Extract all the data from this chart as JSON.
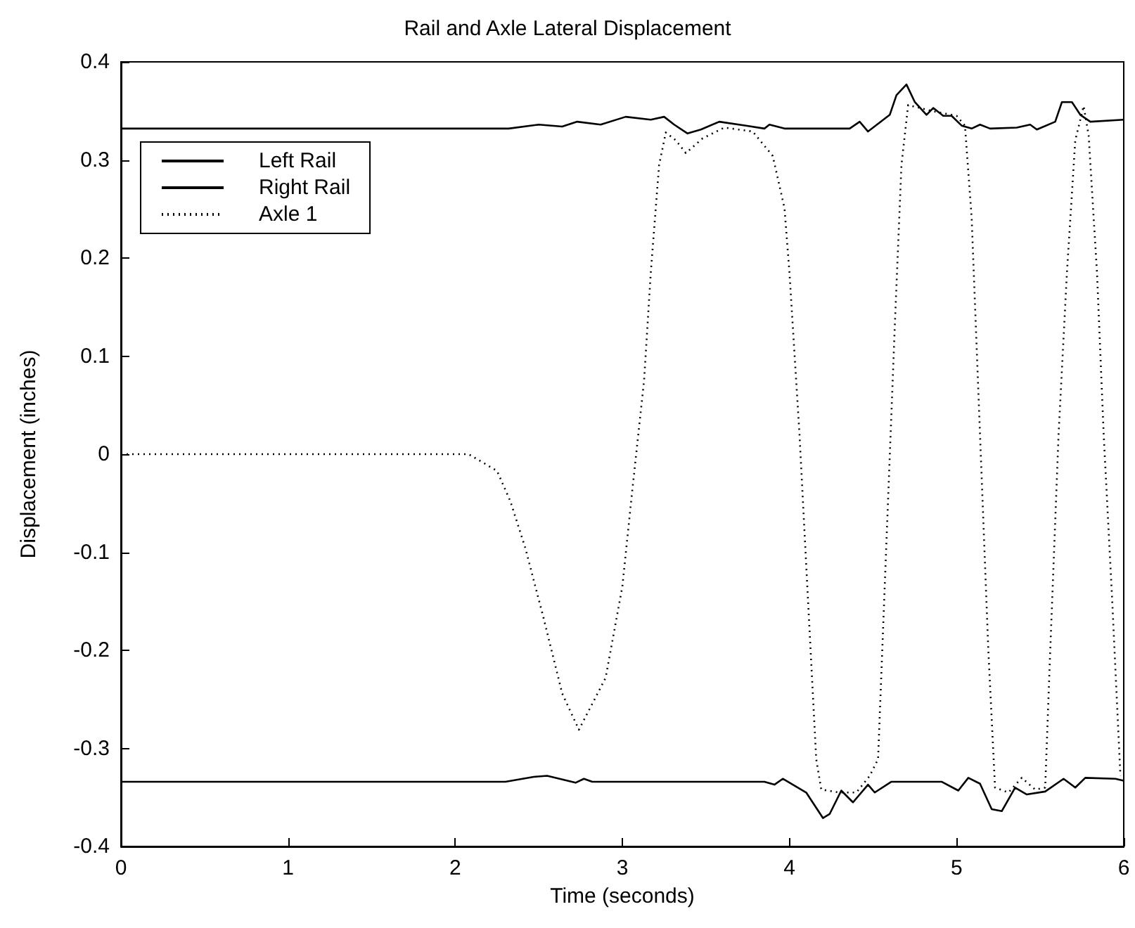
{
  "chart_data": {
    "type": "line",
    "title": "Rail and Axle Lateral Displacement",
    "xlabel": "Time (seconds)",
    "ylabel": "Displacement (inches)",
    "xlim": [
      0,
      6
    ],
    "xticks": [
      0,
      1,
      2,
      3,
      4,
      5,
      6
    ],
    "ylim": [
      -0.4,
      0.4
    ],
    "yticks": [
      -0.4,
      -0.3,
      -0.2,
      -0.1,
      0,
      0.1,
      0.2,
      0.3,
      0.4
    ],
    "grid": false,
    "legend": "top left",
    "marker": "none",
    "series": [
      {
        "name": "Left Rail",
        "color": "#000000",
        "line_style": "solid",
        "x": [
          0,
          2.32,
          2.5,
          2.64,
          2.73,
          2.87,
          3.02,
          3.17,
          3.25,
          3.31,
          3.39,
          3.47,
          3.58,
          3.74,
          3.85,
          3.88,
          3.97,
          4.36,
          4.42,
          4.47,
          4.6,
          4.64,
          4.7,
          4.75,
          4.82,
          4.86,
          4.92,
          4.97,
          5.03,
          5.09,
          5.14,
          5.2,
          5.36,
          5.44,
          5.48,
          5.59,
          5.63,
          5.69,
          5.74,
          5.8,
          6.0
        ],
        "values": [
          0.332,
          0.332,
          0.336,
          0.334,
          0.339,
          0.336,
          0.344,
          0.341,
          0.344,
          0.336,
          0.327,
          0.331,
          0.339,
          0.335,
          0.332,
          0.336,
          0.332,
          0.332,
          0.339,
          0.329,
          0.346,
          0.366,
          0.377,
          0.359,
          0.346,
          0.353,
          0.345,
          0.345,
          0.335,
          0.332,
          0.336,
          0.332,
          0.333,
          0.336,
          0.331,
          0.339,
          0.359,
          0.359,
          0.346,
          0.339,
          0.341
        ]
      },
      {
        "name": "Right Rail",
        "color": "#000000",
        "line_style": "solid",
        "x": [
          0,
          2.3,
          2.47,
          2.55,
          2.72,
          2.77,
          2.82,
          3.85,
          3.91,
          3.96,
          4.1,
          4.2,
          4.24,
          4.31,
          4.38,
          4.47,
          4.51,
          4.61,
          4.91,
          5.01,
          5.07,
          5.14,
          5.21,
          5.27,
          5.35,
          5.42,
          5.53,
          5.64,
          5.71,
          5.77,
          5.95,
          6.0
        ],
        "values": [
          -0.334,
          -0.334,
          -0.329,
          -0.328,
          -0.335,
          -0.331,
          -0.334,
          -0.334,
          -0.337,
          -0.331,
          -0.345,
          -0.371,
          -0.367,
          -0.343,
          -0.355,
          -0.337,
          -0.345,
          -0.334,
          -0.334,
          -0.343,
          -0.33,
          -0.336,
          -0.362,
          -0.364,
          -0.34,
          -0.347,
          -0.344,
          -0.331,
          -0.34,
          -0.33,
          -0.331,
          -0.333
        ]
      },
      {
        "name": "Axle 1",
        "color": "#000000",
        "line_style": "dotted",
        "x": [
          0,
          2.08,
          2.25,
          2.33,
          2.42,
          2.53,
          2.64,
          2.74,
          2.9,
          3.0,
          3.06,
          3.13,
          3.17,
          3.22,
          3.26,
          3.32,
          3.38,
          3.48,
          3.61,
          3.78,
          3.9,
          3.97,
          4.0,
          4.06,
          4.11,
          4.16,
          4.19,
          4.3,
          4.4,
          4.48,
          4.53,
          4.58,
          4.63,
          4.67,
          4.71,
          4.85,
          5.0,
          5.05,
          5.09,
          5.14,
          5.19,
          5.23,
          5.31,
          5.39,
          5.47,
          5.53,
          5.56,
          5.61,
          5.66,
          5.71,
          5.76,
          5.79,
          5.84,
          5.88,
          5.93,
          5.98
        ],
        "values": [
          0,
          0,
          -0.017,
          -0.048,
          -0.096,
          -0.168,
          -0.244,
          -0.281,
          -0.228,
          -0.135,
          -0.036,
          0.075,
          0.185,
          0.295,
          0.328,
          0.32,
          0.307,
          0.322,
          0.333,
          0.329,
          0.304,
          0.251,
          0.185,
          0.02,
          -0.146,
          -0.311,
          -0.342,
          -0.345,
          -0.345,
          -0.328,
          -0.311,
          -0.09,
          0.13,
          0.295,
          0.356,
          0.35,
          0.345,
          0.335,
          0.241,
          0.02,
          -0.201,
          -0.34,
          -0.345,
          -0.33,
          -0.342,
          -0.34,
          -0.201,
          0.02,
          0.185,
          0.32,
          0.355,
          0.325,
          0.185,
          0.02,
          -0.146,
          -0.328
        ]
      }
    ]
  }
}
